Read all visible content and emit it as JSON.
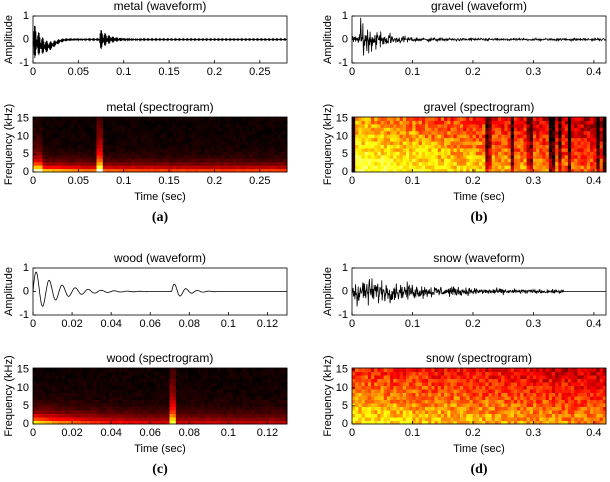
{
  "chart_data": [
    {
      "type": "line",
      "title": "metal (waveform)",
      "ylabel": "Amplitude",
      "xlim": [
        0,
        0.28
      ],
      "xticks": [
        0,
        0.05,
        0.1,
        0.15,
        0.2,
        0.25
      ],
      "ylim": [
        -1,
        1
      ],
      "yticks": [
        -1,
        0,
        1
      ],
      "color": "#000000"
    },
    {
      "type": "heatmap",
      "title": "metal (spectrogram)",
      "xlabel": "Time (sec)",
      "ylabel": "Frequency (kHz)",
      "xlim": [
        0,
        0.28
      ],
      "xticks": [
        0,
        0.05,
        0.1,
        0.15,
        0.2,
        0.25
      ],
      "ylim": [
        0,
        15.5
      ],
      "yticks": [
        0,
        5,
        10,
        15
      ],
      "colormap": "hot"
    },
    {
      "type": "line",
      "title": "gravel (waveform)",
      "ylabel": "Amplitude",
      "xlim": [
        0,
        0.42
      ],
      "xticks": [
        0,
        0.1,
        0.2,
        0.3,
        0.4
      ],
      "ylim": [
        -1,
        1
      ],
      "yticks": [
        -1,
        0,
        1
      ],
      "color": "#000000"
    },
    {
      "type": "heatmap",
      "title": "gravel (spectrogram)",
      "xlabel": "Time (sec)",
      "ylabel": "Frequency (kHz)",
      "xlim": [
        0,
        0.42
      ],
      "xticks": [
        0,
        0.1,
        0.2,
        0.3,
        0.4
      ],
      "ylim": [
        0,
        15.5
      ],
      "yticks": [
        0,
        5,
        10,
        15
      ],
      "colormap": "hot"
    },
    {
      "type": "line",
      "title": "wood (waveform)",
      "ylabel": "Amplitude",
      "xlim": [
        0,
        0.13
      ],
      "xticks": [
        0,
        0.02,
        0.04,
        0.06,
        0.08,
        0.1,
        0.12
      ],
      "ylim": [
        -1,
        1
      ],
      "yticks": [
        -1,
        0,
        1
      ],
      "color": "#000000"
    },
    {
      "type": "heatmap",
      "title": "wood (spectrogram)",
      "xlabel": "Time (sec)",
      "ylabel": "Frequency (kHz)",
      "xlim": [
        0,
        0.13
      ],
      "xticks": [
        0,
        0.02,
        0.04,
        0.06,
        0.08,
        0.1,
        0.12
      ],
      "ylim": [
        0,
        15.5
      ],
      "yticks": [
        0,
        5,
        10,
        15
      ],
      "colormap": "hot"
    },
    {
      "type": "line",
      "title": "snow (waveform)",
      "ylabel": "Amplitude",
      "xlim": [
        0,
        0.42
      ],
      "xticks": [
        0,
        0.1,
        0.2,
        0.3,
        0.4
      ],
      "ylim": [
        -1,
        1
      ],
      "yticks": [
        -1,
        0,
        1
      ],
      "color": "#000000"
    },
    {
      "type": "heatmap",
      "title": "snow (spectrogram)",
      "xlabel": "Time (sec)",
      "ylabel": "Frequency (kHz)",
      "xlim": [
        0,
        0.42
      ],
      "xticks": [
        0,
        0.1,
        0.2,
        0.3,
        0.4
      ],
      "ylim": [
        0,
        15.5
      ],
      "yticks": [
        0,
        5,
        10,
        15
      ],
      "colormap": "hot"
    }
  ],
  "captions": [
    "(a)",
    "(b)",
    "(c)",
    "(d)"
  ]
}
